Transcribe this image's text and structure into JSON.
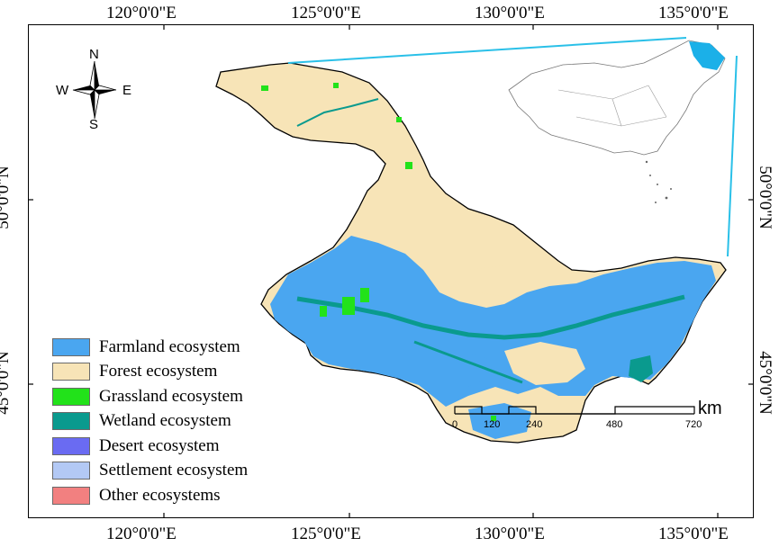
{
  "coordinates": {
    "top": [
      "120°0'0\"E",
      "125°0'0\"E",
      "130°0'0\"E",
      "135°0'0\"E"
    ],
    "bottom": [
      "120°0'0\"E",
      "125°0'0\"E",
      "130°0'0\"E",
      "135°0'0\"E"
    ],
    "left": [
      "50°0'0\"N",
      "45°0'0\"N"
    ],
    "right": [
      "50°0'0\"N",
      "45°0'0\"N"
    ]
  },
  "compass": {
    "n": "N",
    "s": "S",
    "e": "E",
    "w": "W"
  },
  "legend": [
    {
      "label": "Farmland ecosystem",
      "color": "#4AA6F0"
    },
    {
      "label": "Forest ecosystem",
      "color": "#F7E4B7"
    },
    {
      "label": "Grassland ecosystem",
      "color": "#22E21A"
    },
    {
      "label": "Wetland ecosystem",
      "color": "#0A9A8E"
    },
    {
      "label": "Desert ecosystem",
      "color": "#6A6BF2"
    },
    {
      "label": "Settlement ecosystem",
      "color": "#B3C9F5"
    },
    {
      "label": "Other ecosystems",
      "color": "#F28080"
    }
  ],
  "scale_bar": {
    "ticks": [
      "0",
      "120",
      "240",
      "480",
      "720"
    ],
    "unit": "km"
  },
  "colors": {
    "inset_line": "#2AC0E8",
    "inset_highlight": "#1BB0E8"
  }
}
